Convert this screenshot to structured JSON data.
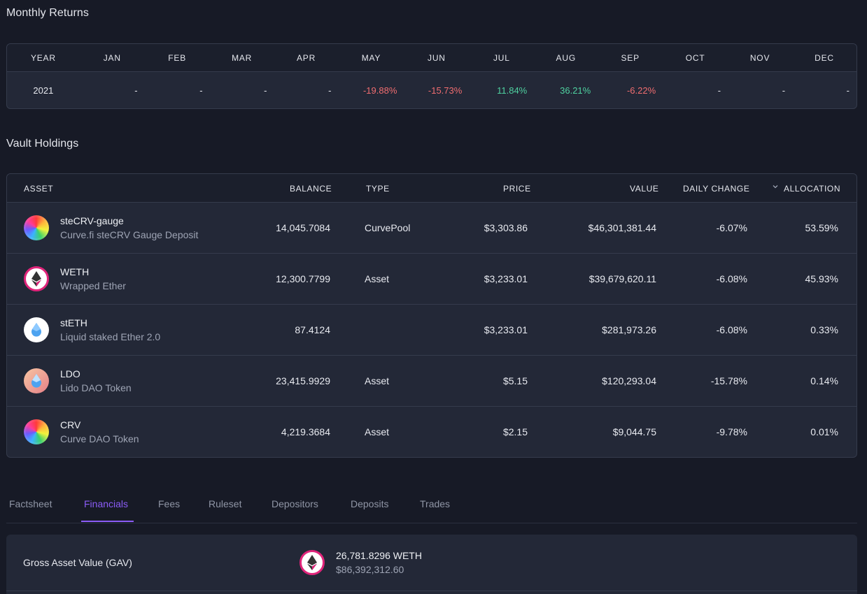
{
  "monthly_returns": {
    "title": "Monthly Returns",
    "headers": [
      "YEAR",
      "JAN",
      "FEB",
      "MAR",
      "APR",
      "MAY",
      "JUN",
      "JUL",
      "AUG",
      "SEP",
      "OCT",
      "NOV",
      "DEC"
    ],
    "rows": [
      {
        "cells": [
          "2021",
          "-",
          "-",
          "-",
          "-",
          "-19.88%",
          "-15.73%",
          "11.84%",
          "36.21%",
          "-6.22%",
          "-",
          "-",
          "-"
        ],
        "tones": [
          "plain",
          "plain",
          "plain",
          "plain",
          "plain",
          "neg",
          "neg",
          "pos",
          "pos",
          "neg",
          "plain",
          "plain",
          "plain"
        ]
      }
    ]
  },
  "vault_holdings": {
    "title": "Vault Holdings",
    "headers": {
      "asset": "ASSET",
      "balance": "BALANCE",
      "type": "TYPE",
      "price": "PRICE",
      "value": "VALUE",
      "daily_change": "DAILY CHANGE",
      "allocation": "ALLOCATION"
    },
    "sort_icon": "chevron-down-icon",
    "rows": [
      {
        "icon": "rainbow",
        "name": "steCRV-gauge",
        "sub": "Curve.fi steCRV Gauge Deposit",
        "balance": "14,045.7084",
        "type": "CurvePool",
        "price": "$3,303.86",
        "value": "$46,301,381.44",
        "change": "-6.07%",
        "allocation": "53.59%"
      },
      {
        "icon": "weth",
        "name": "WETH",
        "sub": "Wrapped Ether",
        "balance": "12,300.7799",
        "type": "Asset",
        "price": "$3,233.01",
        "value": "$39,679,620.11",
        "change": "-6.08%",
        "allocation": "45.93%"
      },
      {
        "icon": "steth",
        "name": "stETH",
        "sub": "Liquid staked Ether 2.0",
        "balance": "87.4124",
        "type": "",
        "price": "$3,233.01",
        "value": "$281,973.26",
        "change": "-6.08%",
        "allocation": "0.33%"
      },
      {
        "icon": "ldo",
        "name": "LDO",
        "sub": "Lido DAO Token",
        "balance": "23,415.9929",
        "type": "Asset",
        "price": "$5.15",
        "value": "$120,293.04",
        "change": "-15.78%",
        "allocation": "0.14%"
      },
      {
        "icon": "rainbow",
        "name": "CRV",
        "sub": "Curve DAO Token",
        "balance": "4,219.3684",
        "type": "Asset",
        "price": "$2.15",
        "value": "$9,044.75",
        "change": "-9.78%",
        "allocation": "0.01%"
      }
    ]
  },
  "tabs": [
    "Factsheet",
    "Financials",
    "Fees",
    "Ruleset",
    "Depositors",
    "Deposits",
    "Trades"
  ],
  "active_tab": "Financials",
  "financials": {
    "gav_label": "Gross Asset Value (GAV)",
    "gav_amount": "26,781.8296 WETH",
    "gav_usd": "$86,392,312.60",
    "gav_icon": "weth"
  },
  "colors": {
    "positive": "#4fd1a0",
    "negative": "#f06d70",
    "accent": "#8b5cf6"
  }
}
